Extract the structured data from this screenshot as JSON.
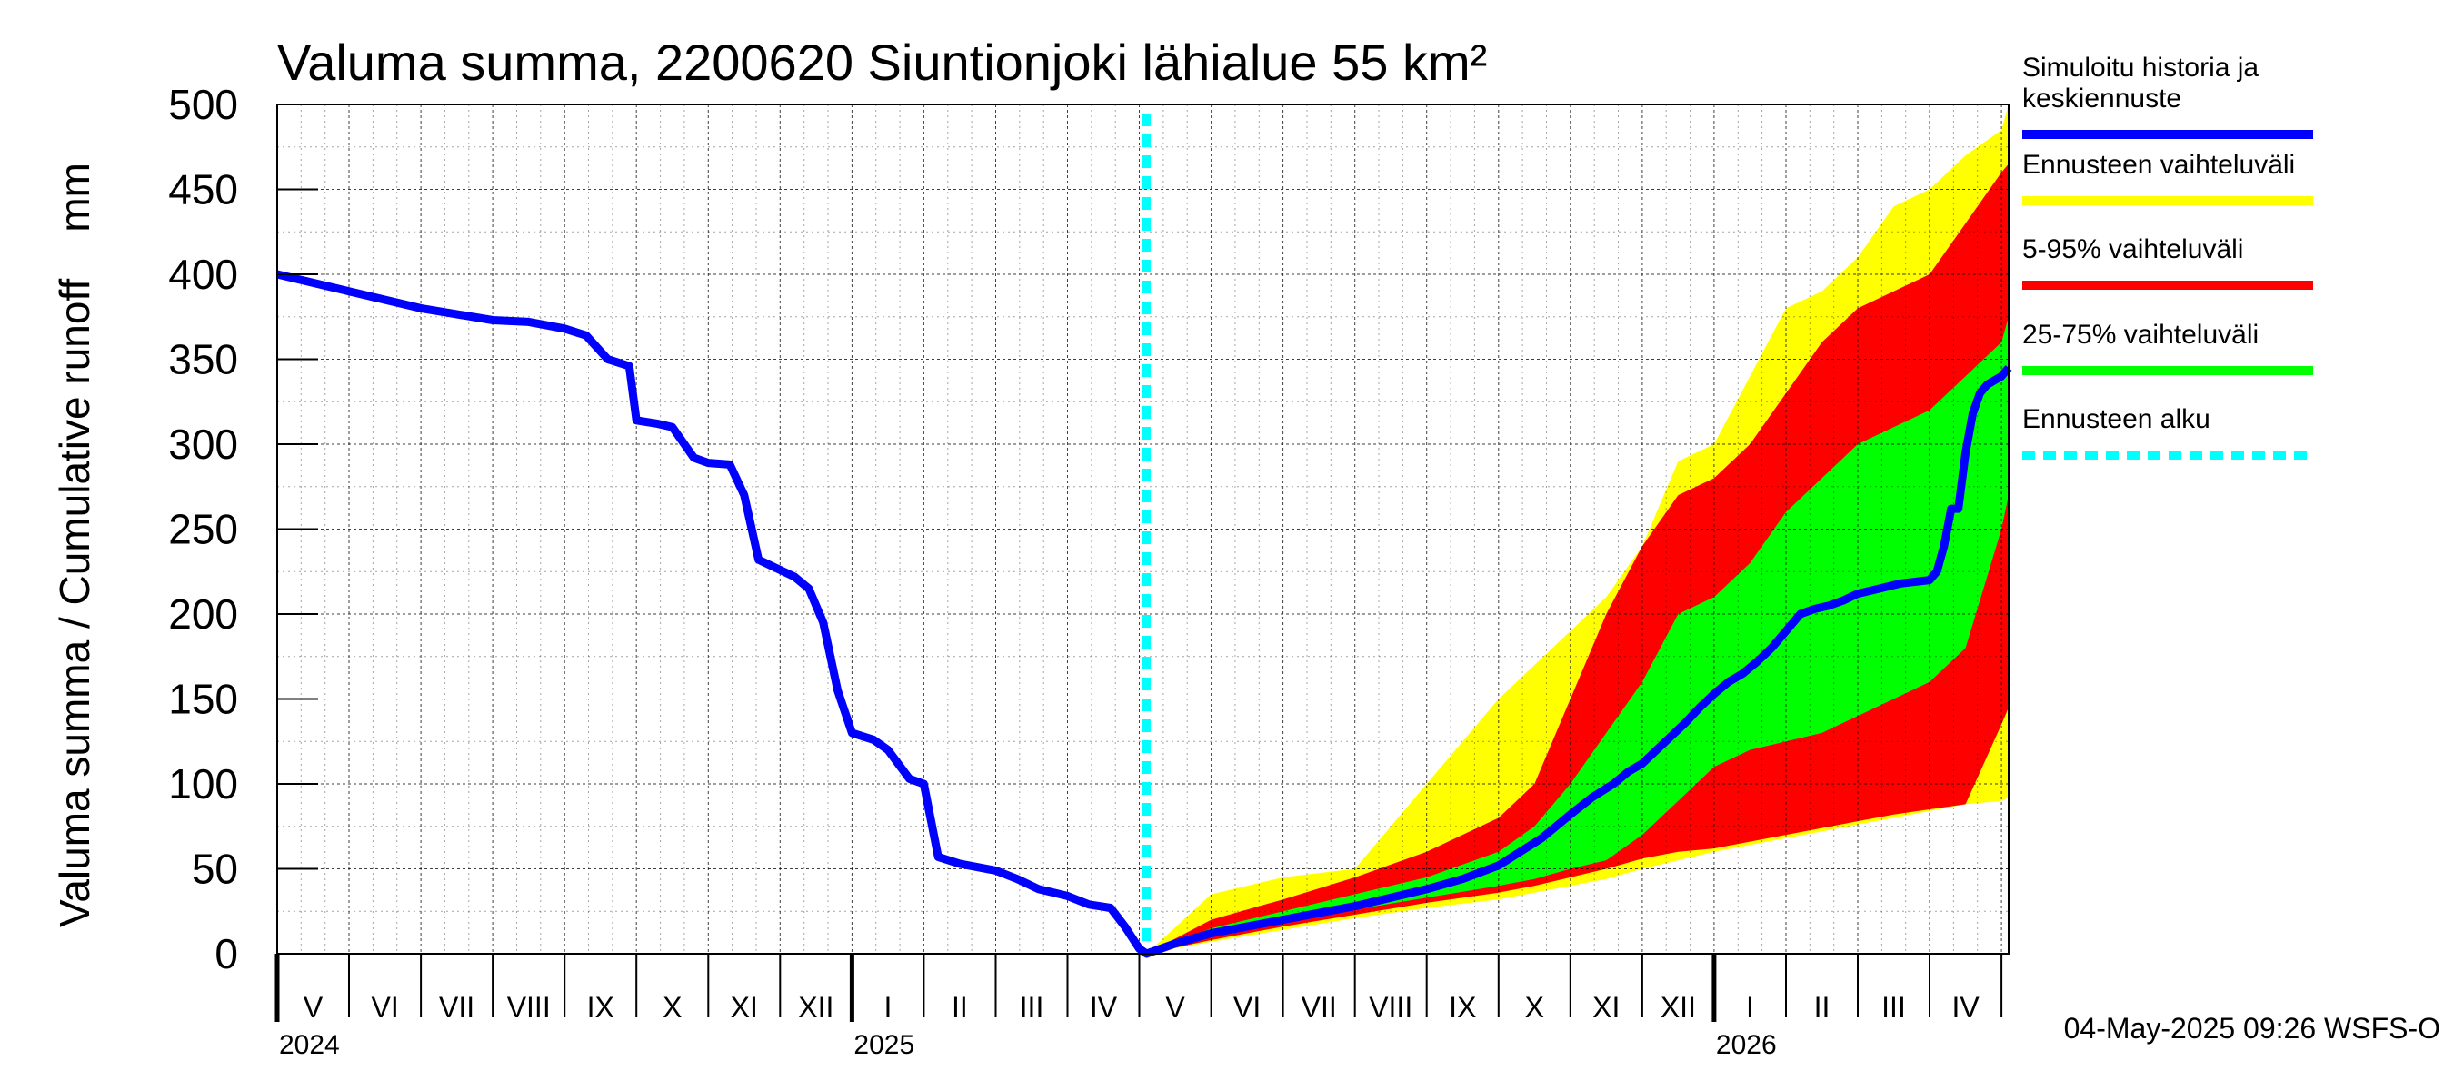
{
  "chart_data": {
    "type": "area",
    "title": "Valuma summa, 2200620 Siuntionjoki lähialue 55 km²",
    "ylabel": "Valuma summa / Cumulative runoff    mm",
    "ylim": [
      0,
      500
    ],
    "yticks": [
      "0",
      "50",
      "100",
      "150",
      "200",
      "250",
      "300",
      "350",
      "400",
      "450",
      "500"
    ],
    "ytick_values": [
      0,
      50,
      100,
      150,
      200,
      250,
      300,
      350,
      400,
      450,
      500
    ],
    "x_units": "months since start of May 2024",
    "xlim": [
      0,
      24.1
    ],
    "month_labels": [
      "V",
      "VI",
      "VII",
      "VIII",
      "IX",
      "X",
      "XI",
      "XII",
      "I",
      "II",
      "III",
      "IV",
      "V",
      "VI",
      "VII",
      "VIII",
      "IX",
      "X",
      "XI",
      "XII",
      "I",
      "II",
      "III",
      "IV"
    ],
    "year_labels": [
      {
        "label": "2024",
        "x": 0
      },
      {
        "label": "2025",
        "x": 8
      },
      {
        "label": "2026",
        "x": 20
      }
    ],
    "forecast_start": 12.1,
    "series": [
      {
        "name": "Simuloitu historia ja keskiennuste",
        "color": "#0000ff",
        "x": [
          0,
          1,
          2,
          3,
          3.5,
          4,
          4.3,
          4.6,
          4.9,
          5.0,
          5.3,
          5.5,
          5.8,
          6.0,
          6.3,
          6.5,
          6.7,
          7.0,
          7.2,
          7.4,
          7.6,
          7.8,
          8.0,
          8.3,
          8.5,
          8.8,
          9.0,
          9.2,
          9.5,
          10.0,
          10.3,
          10.6,
          11.0,
          11.3,
          11.6,
          11.8,
          12.0,
          12.1,
          12.5,
          13,
          13.5,
          14,
          14.5,
          15,
          15.5,
          16,
          16.5,
          17,
          17.3,
          17.6,
          17.8,
          18,
          18.3,
          18.6,
          18.8,
          19,
          19.2,
          19.4,
          19.6,
          19.8,
          20,
          20.2,
          20.4,
          20.6,
          20.8,
          21,
          21.2,
          21.4,
          21.6,
          21.8,
          22,
          22.3,
          22.6,
          23,
          23.1,
          23.2,
          23.3,
          23.4,
          23.5,
          23.6,
          23.7,
          23.8,
          24,
          24.1
        ],
        "values": [
          400,
          390,
          380,
          373,
          372,
          368,
          364,
          350,
          346,
          314,
          312,
          310,
          292,
          289,
          288,
          270,
          232,
          226,
          222,
          215,
          195,
          155,
          130,
          126,
          120,
          103,
          100,
          57,
          53,
          49,
          44,
          38,
          34,
          29,
          27,
          16,
          3,
          0,
          6,
          12,
          16,
          20,
          24,
          28,
          33,
          38,
          44,
          52,
          60,
          68,
          75,
          82,
          92,
          100,
          107,
          112,
          120,
          128,
          136,
          145,
          153,
          160,
          165,
          172,
          180,
          190,
          200,
          203,
          205,
          208,
          212,
          215,
          218,
          220,
          225,
          240,
          262,
          262,
          295,
          318,
          330,
          335,
          340,
          345
        ]
      }
    ],
    "bands": [
      {
        "name": "Ennusteen vaihteluväli",
        "color": "#ffff00",
        "x": [
          12.1,
          13,
          14,
          15,
          16,
          17,
          17.5,
          18,
          18.5,
          19,
          19.5,
          20,
          20.5,
          21,
          21.5,
          22,
          22.5,
          23,
          23.5,
          24,
          24.1
        ],
        "lower": [
          0,
          7,
          14,
          21,
          27,
          32,
          36,
          40,
          44,
          50,
          55,
          60,
          64,
          68,
          72,
          76,
          80,
          84,
          88,
          90,
          92
        ],
        "upper": [
          0,
          35,
          45,
          50,
          100,
          150,
          170,
          190,
          210,
          240,
          290,
          300,
          340,
          380,
          390,
          410,
          440,
          450,
          470,
          485,
          500
        ]
      },
      {
        "name": "5-95% vaihteluväli",
        "color": "#ff0000",
        "x": [
          12.1,
          13,
          14,
          15,
          16,
          17,
          17.5,
          18,
          18.5,
          19,
          19.5,
          20,
          20.5,
          21,
          21.5,
          22,
          22.5,
          23,
          23.5,
          24,
          24.1
        ],
        "lower": [
          0,
          8,
          16,
          23,
          30,
          36,
          40,
          45,
          50,
          56,
          60,
          62,
          66,
          70,
          74,
          78,
          82,
          85,
          88,
          135,
          145
        ],
        "upper": [
          0,
          20,
          32,
          45,
          60,
          80,
          100,
          150,
          200,
          240,
          270,
          280,
          300,
          330,
          360,
          380,
          390,
          400,
          430,
          460,
          465
        ]
      },
      {
        "name": "25-75% vaihteluväli",
        "color": "#00ff00",
        "x": [
          12.1,
          13,
          14,
          15,
          16,
          17,
          17.5,
          18,
          18.5,
          19,
          19.5,
          20,
          20.5,
          21,
          21.5,
          22,
          22.5,
          23,
          23.5,
          24,
          24.1
        ],
        "lower": [
          0,
          10,
          18,
          26,
          33,
          40,
          44,
          50,
          55,
          70,
          90,
          110,
          120,
          125,
          130,
          140,
          150,
          160,
          180,
          250,
          270
        ],
        "upper": [
          0,
          15,
          25,
          35,
          45,
          60,
          75,
          100,
          130,
          160,
          200,
          210,
          230,
          260,
          280,
          300,
          310,
          320,
          340,
          360,
          375
        ]
      }
    ],
    "legend": [
      {
        "label_lines": [
          "Simuloitu historia ja",
          "keskiennuste"
        ],
        "color": "#0000ff",
        "style": "solid"
      },
      {
        "label_lines": [
          "Ennusteen vaihteluväli"
        ],
        "color": "#ffff00",
        "style": "solid"
      },
      {
        "label_lines": [
          "5-95% vaihteluväli"
        ],
        "color": "#ff0000",
        "style": "solid"
      },
      {
        "label_lines": [
          "25-75% vaihteluväli"
        ],
        "color": "#00ff00",
        "style": "solid"
      },
      {
        "label_lines": [
          "Ennusteen alku"
        ],
        "color": "#00ffff",
        "style": "dashed"
      }
    ],
    "forecast_line_color": "#00ffff",
    "timestamp": "04-May-2025 09:26 WSFS-O"
  }
}
